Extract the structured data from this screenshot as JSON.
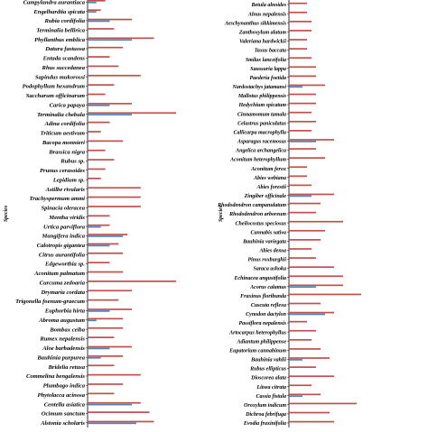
{
  "chart_data": [
    {
      "type": "bar",
      "orientation": "horizontal",
      "ylabel": "Species",
      "colors": {
        "red": "#c0504d",
        "blue": "#4f81bd"
      },
      "grid": false,
      "categories": [
        "Campylandra aurantiaca",
        "Engelhardtia spicata",
        "Rubia cordifolia",
        "Terminalia bellirica",
        "Phyllanthus emblica",
        "Datura fastuosa",
        "Entada scandens",
        "Rhus succedanea",
        "Sapindus mukorossi",
        "Podophyllum hexandrum",
        "Saccharum officinarum",
        "Carica papaya",
        "Terminalia chebula",
        "Adina cordifolia",
        "Triticum aestivum",
        "Bacopa monnieri",
        "Brassica nigra",
        "Rubus sp.",
        "Prunus cerasoides",
        "Lepidium sp.",
        "Astilbe rivularis",
        "Trachyspermum ammi",
        "Spinacia oleracea",
        "Mentha viridis",
        "Urtica parviflora",
        "Mangifera indica",
        "Calotropis gigantea",
        "Citrus aurantifolia",
        "Edgeworthia sp.",
        "Aconitum palmatum",
        "Curcuma zedoaria",
        "Drymaria cordata",
        "Trigonella foenum-graecum",
        "Euphorbia hirta",
        "Abroma augustum",
        "Bombax ceiba",
        "Rumex nepalensis",
        "Aloe barbadensis",
        "Bauhinia purpurea",
        "Bridelia retusa",
        "Commelina bengalensis",
        "Plumbago indica",
        "Phytolacca acinosa",
        "Centella asiatica",
        "Ocimum sanctum",
        "Alstonia scholaris"
      ],
      "series": [
        {
          "values": [
            4,
            3,
            10,
            6,
            15,
            8,
            5,
            7,
            12,
            6,
            4,
            10,
            20,
            5,
            3,
            8,
            4,
            6,
            4,
            3,
            12,
            12,
            12,
            5,
            5,
            9,
            7,
            8,
            5,
            8,
            20,
            10,
            7,
            10,
            8,
            8,
            6,
            10,
            8,
            6,
            12,
            8,
            6,
            12,
            14,
            15
          ]
        },
        {
          "values": [
            2,
            2,
            5,
            0,
            10,
            0,
            0,
            0,
            0,
            0,
            0,
            5,
            10,
            0,
            0,
            0,
            0,
            0,
            0,
            0,
            0,
            0,
            0,
            0,
            3,
            8,
            5,
            0,
            0,
            0,
            0,
            0,
            0,
            5,
            2,
            0,
            0,
            5,
            3,
            0,
            0,
            0,
            0,
            10,
            0,
            11
          ]
        }
      ]
    },
    {
      "type": "bar",
      "orientation": "horizontal",
      "ylabel": "Species",
      "colors": {
        "red": "#c0504d",
        "blue": "#4f81bd"
      },
      "grid": false,
      "categories": [
        "Betula alnoides",
        "Alnus nepalensis",
        "Aeschynanthus sikkimensis",
        "Zanthoxylum alatum",
        "Valeriana hardwickii",
        "Taxus baccata",
        "Smilax lanceifolia",
        "Saussuria lappa",
        "Paederia foetida",
        "Nardostachys jatamansi",
        "Mallotus philippensis",
        "Hedychium spicatum",
        "Cinnamomum tamala",
        "Celastrus paniculatus",
        "Callicarpa macrophylla",
        "Asparagus racemosus",
        "Angelica archangelica",
        "Aconitum heterophyllum",
        "Aconitum ferox",
        "Abies webiana",
        "Abies forestii",
        "Zingiber officinale",
        "Rhododendron campanulatum",
        "Rhododendron arboreum",
        "Cheilocostus speciosus",
        "Cannabis sativa",
        "Bauhinia variegata",
        "Abies densa",
        "Pinus roxburghii",
        "Saraca ashoka",
        "Echinacea angustifolia",
        "Acorus calamus",
        "Fraxinus floribunda",
        "Cuscuta reflexa",
        "Cynodon dactylon",
        "Passiflora nepalensis",
        "Artocarpus heterophyllus",
        "Adiantum philippense",
        "Eupatorium cannabinum",
        "Bauhinia vahlii",
        "Rubus ellipticus",
        "Dioscorea alata",
        "Litsea citrata",
        "Cassia fistula",
        "Oroxylum indicum",
        "Dichroa febrifuga",
        "Evodia fraxinifolia"
      ],
      "series": [
        {
          "values": [
            4,
            4,
            5,
            5,
            4,
            4,
            5,
            6,
            6,
            8,
            6,
            6,
            5,
            6,
            5,
            10,
            6,
            8,
            4,
            4,
            5,
            10,
            7,
            6,
            12,
            8,
            7,
            5,
            6,
            10,
            12,
            12,
            16,
            7,
            10,
            4,
            6,
            5,
            7,
            9,
            6,
            10,
            5,
            7,
            15,
            9,
            10
          ]
        },
        {
          "values": [
            0,
            0,
            0,
            0,
            0,
            0,
            0,
            0,
            0,
            3,
            0,
            0,
            0,
            0,
            0,
            6,
            0,
            0,
            0,
            0,
            0,
            5,
            0,
            0,
            0,
            0,
            0,
            0,
            0,
            0,
            0,
            6,
            0,
            0,
            8,
            0,
            0,
            0,
            0,
            3,
            0,
            0,
            0,
            3,
            0,
            0,
            0
          ]
        }
      ]
    }
  ]
}
